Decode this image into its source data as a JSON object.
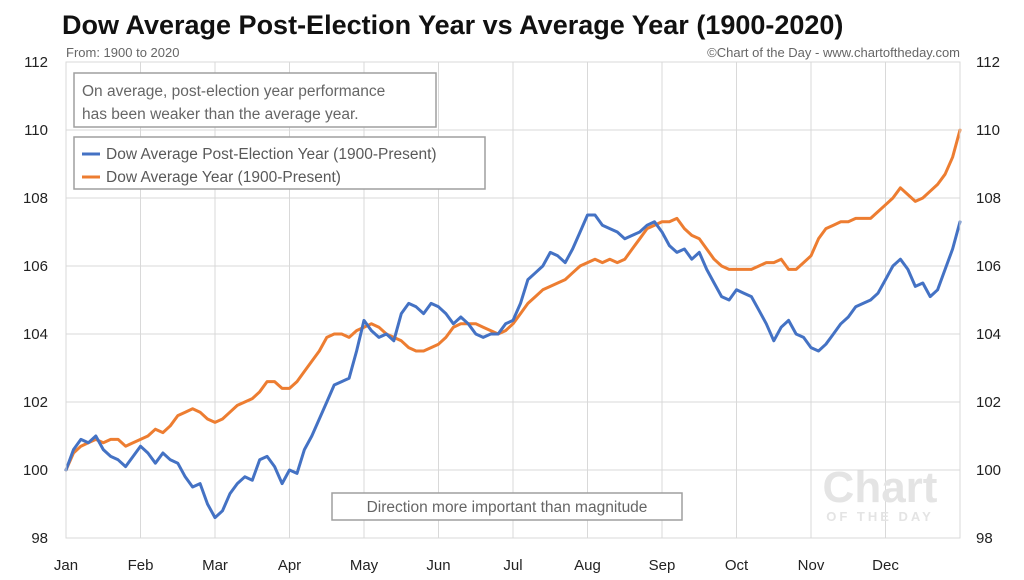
{
  "title": "Dow Average Post-Election Year vs Average Year (1900-2020)",
  "subtitle_left": "From: 1900 to 2020",
  "subtitle_right": "©Chart of the Day - www.chartoftheday.com",
  "note_top": [
    "On average, post-election year performance",
    "has been weaker than the average year."
  ],
  "note_bottom": "Direction more important than magnitude",
  "watermark": [
    "Chart",
    "OF THE DAY"
  ],
  "colors": {
    "post_election": "#4472c4",
    "average": "#ed7d31",
    "grid": "#d9d9d9"
  },
  "chart_data": {
    "type": "line",
    "title": "Dow Average Post-Election Year vs Average Year (1900-2020)",
    "x_labels": [
      "Jan",
      "Feb",
      "Mar",
      "Apr",
      "May",
      "Jun",
      "Jul",
      "Aug",
      "Sep",
      "Oct",
      "Nov",
      "Dec"
    ],
    "xlim": [
      0,
      12
    ],
    "ylim": [
      98,
      112
    ],
    "y_ticks": [
      98,
      100,
      102,
      104,
      106,
      108,
      110,
      112
    ],
    "grid": true,
    "legend_position": "top-left",
    "series": [
      {
        "name": "Dow Average Post-Election Year (1900-Present)",
        "points": [
          [
            0.0,
            100.0
          ],
          [
            0.1,
            100.6
          ],
          [
            0.2,
            100.9
          ],
          [
            0.3,
            100.8
          ],
          [
            0.4,
            101.0
          ],
          [
            0.5,
            100.6
          ],
          [
            0.6,
            100.4
          ],
          [
            0.7,
            100.3
          ],
          [
            0.8,
            100.1
          ],
          [
            0.9,
            100.4
          ],
          [
            1.0,
            100.7
          ],
          [
            1.1,
            100.5
          ],
          [
            1.2,
            100.2
          ],
          [
            1.3,
            100.5
          ],
          [
            1.4,
            100.3
          ],
          [
            1.5,
            100.2
          ],
          [
            1.6,
            99.8
          ],
          [
            1.7,
            99.5
          ],
          [
            1.8,
            99.6
          ],
          [
            1.9,
            99.0
          ],
          [
            2.0,
            98.6
          ],
          [
            2.1,
            98.8
          ],
          [
            2.2,
            99.3
          ],
          [
            2.3,
            99.6
          ],
          [
            2.4,
            99.8
          ],
          [
            2.5,
            99.7
          ],
          [
            2.6,
            100.3
          ],
          [
            2.7,
            100.4
          ],
          [
            2.8,
            100.1
          ],
          [
            2.9,
            99.6
          ],
          [
            3.0,
            100.0
          ],
          [
            3.1,
            99.9
          ],
          [
            3.2,
            100.6
          ],
          [
            3.3,
            101.0
          ],
          [
            3.4,
            101.5
          ],
          [
            3.5,
            102.0
          ],
          [
            3.6,
            102.5
          ],
          [
            3.7,
            102.6
          ],
          [
            3.8,
            102.7
          ],
          [
            3.9,
            103.5
          ],
          [
            4.0,
            104.4
          ],
          [
            4.1,
            104.1
          ],
          [
            4.2,
            103.9
          ],
          [
            4.3,
            104.0
          ],
          [
            4.4,
            103.8
          ],
          [
            4.5,
            104.6
          ],
          [
            4.6,
            104.9
          ],
          [
            4.7,
            104.8
          ],
          [
            4.8,
            104.6
          ],
          [
            4.9,
            104.9
          ],
          [
            5.0,
            104.8
          ],
          [
            5.1,
            104.6
          ],
          [
            5.2,
            104.3
          ],
          [
            5.3,
            104.5
          ],
          [
            5.4,
            104.3
          ],
          [
            5.5,
            104.0
          ],
          [
            5.6,
            103.9
          ],
          [
            5.7,
            104.0
          ],
          [
            5.8,
            104.0
          ],
          [
            5.9,
            104.3
          ],
          [
            6.0,
            104.4
          ],
          [
            6.1,
            104.9
          ],
          [
            6.2,
            105.6
          ],
          [
            6.3,
            105.8
          ],
          [
            6.4,
            106.0
          ],
          [
            6.5,
            106.4
          ],
          [
            6.6,
            106.3
          ],
          [
            6.7,
            106.1
          ],
          [
            6.8,
            106.5
          ],
          [
            6.9,
            107.0
          ],
          [
            7.0,
            107.5
          ],
          [
            7.1,
            107.5
          ],
          [
            7.2,
            107.2
          ],
          [
            7.3,
            107.1
          ],
          [
            7.4,
            107.0
          ],
          [
            7.5,
            106.8
          ],
          [
            7.6,
            106.9
          ],
          [
            7.7,
            107.0
          ],
          [
            7.8,
            107.2
          ],
          [
            7.9,
            107.3
          ],
          [
            8.0,
            107.0
          ],
          [
            8.1,
            106.6
          ],
          [
            8.2,
            106.4
          ],
          [
            8.3,
            106.5
          ],
          [
            8.4,
            106.2
          ],
          [
            8.5,
            106.4
          ],
          [
            8.6,
            105.9
          ],
          [
            8.7,
            105.5
          ],
          [
            8.8,
            105.1
          ],
          [
            8.9,
            105.0
          ],
          [
            9.0,
            105.3
          ],
          [
            9.1,
            105.2
          ],
          [
            9.2,
            105.1
          ],
          [
            9.3,
            104.7
          ],
          [
            9.4,
            104.3
          ],
          [
            9.5,
            103.8
          ],
          [
            9.6,
            104.2
          ],
          [
            9.7,
            104.4
          ],
          [
            9.8,
            104.0
          ],
          [
            9.9,
            103.9
          ],
          [
            10.0,
            103.6
          ],
          [
            10.1,
            103.5
          ],
          [
            10.2,
            103.7
          ],
          [
            10.3,
            104.0
          ],
          [
            10.4,
            104.3
          ],
          [
            10.5,
            104.5
          ],
          [
            10.6,
            104.8
          ],
          [
            10.7,
            104.9
          ],
          [
            10.8,
            105.0
          ],
          [
            10.9,
            105.2
          ],
          [
            11.0,
            105.6
          ],
          [
            11.1,
            106.0
          ],
          [
            11.2,
            106.2
          ],
          [
            11.3,
            105.9
          ],
          [
            11.4,
            105.4
          ],
          [
            11.5,
            105.5
          ],
          [
            11.6,
            105.1
          ],
          [
            11.7,
            105.3
          ],
          [
            11.8,
            105.9
          ],
          [
            11.9,
            106.5
          ],
          [
            12.0,
            107.3
          ]
        ]
      },
      {
        "name": "Dow Average Year (1900-Present)",
        "points": [
          [
            0.0,
            100.0
          ],
          [
            0.1,
            100.5
          ],
          [
            0.2,
            100.7
          ],
          [
            0.3,
            100.8
          ],
          [
            0.4,
            100.9
          ],
          [
            0.5,
            100.8
          ],
          [
            0.6,
            100.9
          ],
          [
            0.7,
            100.9
          ],
          [
            0.8,
            100.7
          ],
          [
            0.9,
            100.8
          ],
          [
            1.0,
            100.9
          ],
          [
            1.1,
            101.0
          ],
          [
            1.2,
            101.2
          ],
          [
            1.3,
            101.1
          ],
          [
            1.4,
            101.3
          ],
          [
            1.5,
            101.6
          ],
          [
            1.6,
            101.7
          ],
          [
            1.7,
            101.8
          ],
          [
            1.8,
            101.7
          ],
          [
            1.9,
            101.5
          ],
          [
            2.0,
            101.4
          ],
          [
            2.1,
            101.5
          ],
          [
            2.2,
            101.7
          ],
          [
            2.3,
            101.9
          ],
          [
            2.4,
            102.0
          ],
          [
            2.5,
            102.1
          ],
          [
            2.6,
            102.3
          ],
          [
            2.7,
            102.6
          ],
          [
            2.8,
            102.6
          ],
          [
            2.9,
            102.4
          ],
          [
            3.0,
            102.4
          ],
          [
            3.1,
            102.6
          ],
          [
            3.2,
            102.9
          ],
          [
            3.3,
            103.2
          ],
          [
            3.4,
            103.5
          ],
          [
            3.5,
            103.9
          ],
          [
            3.6,
            104.0
          ],
          [
            3.7,
            104.0
          ],
          [
            3.8,
            103.9
          ],
          [
            3.9,
            104.1
          ],
          [
            4.0,
            104.2
          ],
          [
            4.1,
            104.3
          ],
          [
            4.2,
            104.2
          ],
          [
            4.3,
            104.0
          ],
          [
            4.4,
            103.9
          ],
          [
            4.5,
            103.8
          ],
          [
            4.6,
            103.6
          ],
          [
            4.7,
            103.5
          ],
          [
            4.8,
            103.5
          ],
          [
            4.9,
            103.6
          ],
          [
            5.0,
            103.7
          ],
          [
            5.1,
            103.9
          ],
          [
            5.2,
            104.2
          ],
          [
            5.3,
            104.3
          ],
          [
            5.4,
            104.3
          ],
          [
            5.5,
            104.3
          ],
          [
            5.6,
            104.2
          ],
          [
            5.7,
            104.1
          ],
          [
            5.8,
            104.0
          ],
          [
            5.9,
            104.1
          ],
          [
            6.0,
            104.3
          ],
          [
            6.1,
            104.6
          ],
          [
            6.2,
            104.9
          ],
          [
            6.3,
            105.1
          ],
          [
            6.4,
            105.3
          ],
          [
            6.5,
            105.4
          ],
          [
            6.6,
            105.5
          ],
          [
            6.7,
            105.6
          ],
          [
            6.8,
            105.8
          ],
          [
            6.9,
            106.0
          ],
          [
            7.0,
            106.1
          ],
          [
            7.1,
            106.2
          ],
          [
            7.2,
            106.1
          ],
          [
            7.3,
            106.2
          ],
          [
            7.4,
            106.1
          ],
          [
            7.5,
            106.2
          ],
          [
            7.6,
            106.5
          ],
          [
            7.7,
            106.8
          ],
          [
            7.8,
            107.1
          ],
          [
            7.9,
            107.2
          ],
          [
            8.0,
            107.3
          ],
          [
            8.1,
            107.3
          ],
          [
            8.2,
            107.4
          ],
          [
            8.3,
            107.1
          ],
          [
            8.4,
            106.9
          ],
          [
            8.5,
            106.8
          ],
          [
            8.6,
            106.5
          ],
          [
            8.7,
            106.2
          ],
          [
            8.8,
            106.0
          ],
          [
            8.9,
            105.9
          ],
          [
            9.0,
            105.9
          ],
          [
            9.1,
            105.9
          ],
          [
            9.2,
            105.9
          ],
          [
            9.3,
            106.0
          ],
          [
            9.4,
            106.1
          ],
          [
            9.5,
            106.1
          ],
          [
            9.6,
            106.2
          ],
          [
            9.7,
            105.9
          ],
          [
            9.8,
            105.9
          ],
          [
            9.9,
            106.1
          ],
          [
            10.0,
            106.3
          ],
          [
            10.1,
            106.8
          ],
          [
            10.2,
            107.1
          ],
          [
            10.3,
            107.2
          ],
          [
            10.4,
            107.3
          ],
          [
            10.5,
            107.3
          ],
          [
            10.6,
            107.4
          ],
          [
            10.7,
            107.4
          ],
          [
            10.8,
            107.4
          ],
          [
            10.9,
            107.6
          ],
          [
            11.0,
            107.8
          ],
          [
            11.1,
            108.0
          ],
          [
            11.2,
            108.3
          ],
          [
            11.3,
            108.1
          ],
          [
            11.4,
            107.9
          ],
          [
            11.5,
            108.0
          ],
          [
            11.6,
            108.2
          ],
          [
            11.7,
            108.4
          ],
          [
            11.8,
            108.7
          ],
          [
            11.9,
            109.2
          ],
          [
            12.0,
            110.0
          ]
        ]
      }
    ]
  }
}
